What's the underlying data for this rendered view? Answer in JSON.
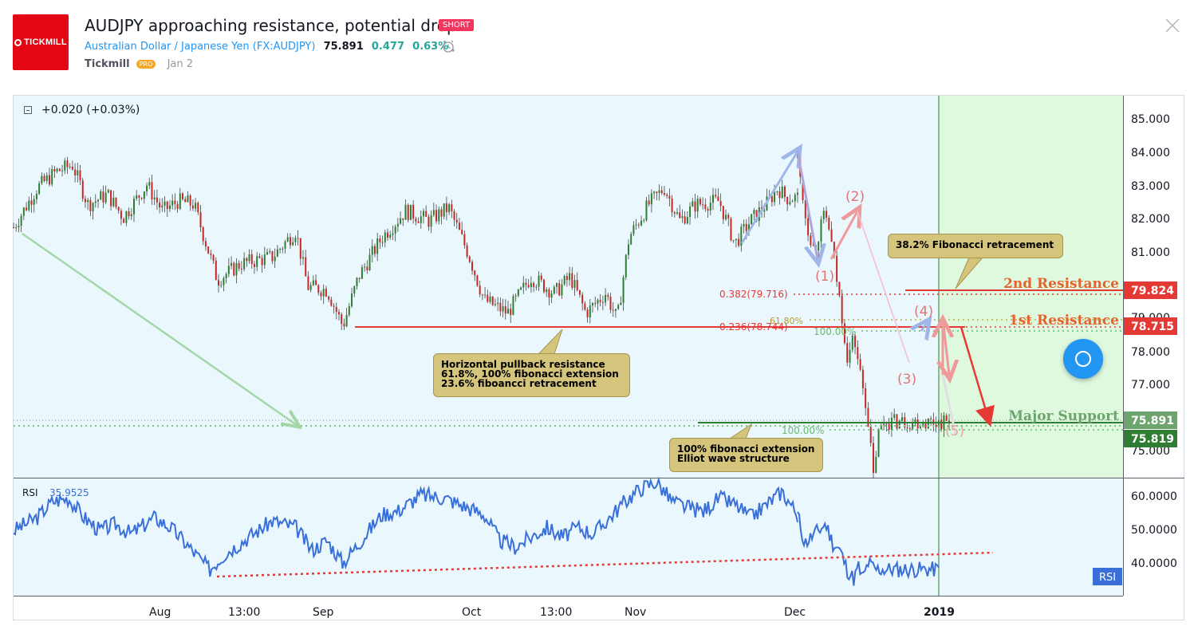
{
  "header": {
    "logo_text": "TICKMILL",
    "title": "AUDJPY approaching resistance, potential drop!",
    "badge": "SHORT",
    "symbol_name": "Australian Dollar / Japanese Yen",
    "symbol_code": "(FX:AUDJPY)",
    "last_price": "75.891",
    "change": "0.477",
    "change_pct": "0.63%",
    "author": "Tickmill",
    "author_badge": "PRO",
    "date": "Jan 2"
  },
  "chart_header": {
    "change_text": "+0.020 (+0.03%)"
  },
  "colors": {
    "chart_bg": "#eaf8fd",
    "forecast_bg": "#dff9df",
    "resistance_red": "#e53935",
    "support_green": "#2e7d32",
    "rsi_line": "#3a6fd8",
    "callout_bg": "#d4c47c"
  },
  "chart_data": [
    {
      "type": "candlestick",
      "symbol": "AUDJPY",
      "x_ticks": [
        "Aug",
        "13:00",
        "Sep",
        "Oct",
        "13:00",
        "Nov",
        "Dec",
        "2019"
      ],
      "y_ticks": [
        "85.000",
        "84.000",
        "83.000",
        "82.000",
        "81.000",
        "79.000",
        "78.000",
        "77.000",
        "75.000"
      ],
      "ylim": [
        74.2,
        85.8
      ],
      "price_path": [
        [
          0,
          81.8
        ],
        [
          0.03,
          83.0
        ],
        [
          0.055,
          83.5
        ],
        [
          0.075,
          83.7
        ],
        [
          0.095,
          82.5
        ],
        [
          0.12,
          82.8
        ],
        [
          0.14,
          82.1
        ],
        [
          0.17,
          83.1
        ],
        [
          0.19,
          82.3
        ],
        [
          0.21,
          82.6
        ],
        [
          0.23,
          82.5
        ],
        [
          0.26,
          80.2
        ],
        [
          0.29,
          80.7
        ],
        [
          0.33,
          80.9
        ],
        [
          0.36,
          81.7
        ],
        [
          0.375,
          80.0
        ],
        [
          0.4,
          79.9
        ],
        [
          0.42,
          78.8
        ],
        [
          0.44,
          80.3
        ],
        [
          0.47,
          81.5
        ],
        [
          0.5,
          82.3
        ],
        [
          0.53,
          82.0
        ],
        [
          0.555,
          82.4
        ],
        [
          0.58,
          81.0
        ],
        [
          0.6,
          79.6
        ],
        [
          0.63,
          79.2
        ],
        [
          0.66,
          80.3
        ],
        [
          0.69,
          79.8
        ],
        [
          0.71,
          80.3
        ],
        [
          0.73,
          79.2
        ],
        [
          0.755,
          79.8
        ],
        [
          0.77,
          79.0
        ],
        [
          0.785,
          81.5
        ],
        [
          0.81,
          82.5
        ],
        [
          0.83,
          83.0
        ],
        [
          0.85,
          82.0
        ],
        [
          0.87,
          82.5
        ],
        [
          0.9,
          82.6
        ],
        [
          0.92,
          81.3
        ],
        [
          0.94,
          82.0
        ],
        [
          0.96,
          82.5
        ],
        [
          0.975,
          83.0
        ],
        [
          0.985,
          82.7
        ]
      ],
      "price_path_2": [
        [
          0,
          83.9
        ],
        [
          0.06,
          81.9
        ],
        [
          0.11,
          81.1
        ],
        [
          0.17,
          82.1
        ],
        [
          0.2,
          82.0
        ],
        [
          0.24,
          80.8
        ],
        [
          0.29,
          79.2
        ],
        [
          0.33,
          77.8
        ],
        [
          0.37,
          78.5
        ],
        [
          0.42,
          77.2
        ],
        [
          0.46,
          76.2
        ],
        [
          0.5,
          74.2
        ],
        [
          0.53,
          75.5
        ],
        [
          0.57,
          75.9
        ]
      ],
      "annotations": [
        {
          "text": "(1)",
          "color": "#e57373"
        },
        {
          "text": "(2)",
          "color": "#e57373"
        },
        {
          "text": "(3)",
          "color": "#e57373"
        },
        {
          "text": "(4)",
          "color": "#e57373"
        },
        {
          "text": "(5)",
          "color": "#e57373"
        }
      ],
      "levels": [
        {
          "name": "2nd Resistance",
          "price": "79.824",
          "color": "#e53935"
        },
        {
          "name": "1st Resistance",
          "price": "78.715",
          "color": "#e53935"
        },
        {
          "name": "Major Support",
          "price": "75.891",
          "color": "#2e7d32"
        }
      ],
      "price_tags": [
        {
          "price": "79.824",
          "color": "#e53935"
        },
        {
          "price": "78.715",
          "color": "#e53935"
        },
        {
          "price": "75.891",
          "color": "#6ea56e"
        },
        {
          "price": "75.819",
          "color": "#2e7d32"
        }
      ],
      "fib_labels": [
        {
          "text": "0.382(79.716)",
          "color": "#e53935"
        },
        {
          "text": "0.236(78.744)",
          "color": "#e53935"
        },
        {
          "text": "61.80%",
          "color": "#b89a2b"
        },
        {
          "text": "100.00%",
          "color": "#66bb6a"
        },
        {
          "text": "100.00%",
          "color": "#66bb6a"
        }
      ],
      "callouts": [
        {
          "text_lines": [
            "38.2% Fibonacci retracement"
          ]
        },
        {
          "text_lines": [
            "Horizontal pullback resistance",
            "61.8%, 100% fibonacci extension",
            "23.6% fiboancci retracement"
          ]
        },
        {
          "text_lines": [
            "100% fibonacci extension",
            "Elliot wave structure"
          ]
        }
      ]
    },
    {
      "type": "line",
      "title": "RSI",
      "value": "35.9525",
      "series": [
        {
          "name": "RSI",
          "color": "#3a6fd8"
        }
      ],
      "y_ticks": [
        "60.0000",
        "50.0000",
        "40.0000"
      ],
      "ylim": [
        28,
        64
      ],
      "tag": "RSI",
      "values": [
        [
          0,
          48
        ],
        [
          0.03,
          52
        ],
        [
          0.05,
          57
        ],
        [
          0.07,
          58
        ],
        [
          0.09,
          52
        ],
        [
          0.11,
          48
        ],
        [
          0.13,
          50
        ],
        [
          0.15,
          47
        ],
        [
          0.18,
          52
        ],
        [
          0.2,
          49
        ],
        [
          0.22,
          44
        ],
        [
          0.25,
          36
        ],
        [
          0.27,
          41
        ],
        [
          0.3,
          46
        ],
        [
          0.33,
          51
        ],
        [
          0.36,
          49
        ],
        [
          0.38,
          42
        ],
        [
          0.4,
          45
        ],
        [
          0.42,
          38
        ],
        [
          0.44,
          44
        ],
        [
          0.47,
          53
        ],
        [
          0.49,
          54
        ],
        [
          0.52,
          59
        ],
        [
          0.55,
          58
        ],
        [
          0.57,
          56
        ],
        [
          0.6,
          53
        ],
        [
          0.62,
          45
        ],
        [
          0.64,
          43
        ],
        [
          0.66,
          46
        ],
        [
          0.68,
          49
        ],
        [
          0.7,
          46
        ],
        [
          0.72,
          49
        ],
        [
          0.74,
          47
        ],
        [
          0.76,
          52
        ],
        [
          0.78,
          57
        ],
        [
          0.8,
          61
        ],
        [
          0.82,
          63
        ],
        [
          0.84,
          57
        ],
        [
          0.86,
          55
        ],
        [
          0.88,
          54
        ],
        [
          0.9,
          58
        ],
        [
          0.92,
          56
        ],
        [
          0.94,
          52
        ],
        [
          0.96,
          56
        ],
        [
          0.98,
          60
        ],
        [
          1,
          53
        ]
      ],
      "values_2": [
        [
          0,
          53
        ],
        [
          0.05,
          44
        ],
        [
          0.1,
          46
        ],
        [
          0.15,
          48
        ],
        [
          0.2,
          50
        ],
        [
          0.25,
          44
        ],
        [
          0.3,
          42
        ],
        [
          0.35,
          36
        ],
        [
          0.4,
          33
        ],
        [
          0.43,
          37
        ],
        [
          0.46,
          33
        ],
        [
          0.5,
          38
        ],
        [
          0.55,
          36
        ]
      ]
    }
  ],
  "x_axis_labels": [
    "Aug",
    "13:00",
    "Sep",
    "Oct",
    "13:00",
    "Nov",
    "Dec",
    "2019"
  ]
}
